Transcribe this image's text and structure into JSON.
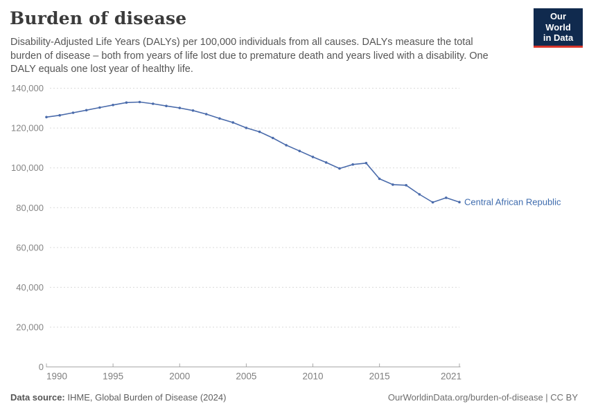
{
  "header": {
    "title": "Burden of disease",
    "subtitle": "Disability-Adjusted Life Years (DALYs) per 100,000 individuals from all causes. DALYs measure the total burden of disease – both from years of life lost due to premature death and years lived with a disability. One DALY equals one lost year of healthy life.",
    "logo": {
      "line1": "Our World",
      "line2": "in Data",
      "bg_color": "#102a4e",
      "accent_color": "#d8352a"
    }
  },
  "chart_data": {
    "type": "line",
    "title": "Burden of disease",
    "xlabel": "",
    "ylabel": "DALYs per 100,000 individuals",
    "x": [
      1990,
      1991,
      1992,
      1993,
      1994,
      1995,
      1996,
      1997,
      1998,
      1999,
      2000,
      2001,
      2002,
      2003,
      2004,
      2005,
      2006,
      2007,
      2008,
      2009,
      2010,
      2011,
      2012,
      2013,
      2014,
      2015,
      2016,
      2017,
      2018,
      2019,
      2020,
      2021
    ],
    "series": [
      {
        "name": "Central African Republic",
        "color": "#4a6bab",
        "values": [
          125500,
          126400,
          127700,
          129000,
          130300,
          131600,
          132800,
          133100,
          132200,
          131100,
          130100,
          128800,
          127000,
          124800,
          122800,
          120100,
          118100,
          115000,
          111400,
          108500,
          105500,
          102700,
          99700,
          101700,
          102400,
          94500,
          91600,
          91300,
          86700,
          82700,
          85000,
          82800
        ]
      }
    ],
    "ylim": [
      0,
      140000
    ],
    "yticks": [
      {
        "value": 0,
        "label": "0"
      },
      {
        "value": 20000,
        "label": "20,000"
      },
      {
        "value": 40000,
        "label": "40,000"
      },
      {
        "value": 60000,
        "label": "60,000"
      },
      {
        "value": 80000,
        "label": "80,000"
      },
      {
        "value": 100000,
        "label": "100,000"
      },
      {
        "value": 120000,
        "label": "120,000"
      },
      {
        "value": 140000,
        "label": "140,000"
      }
    ],
    "xticks": [
      {
        "value": 1990,
        "label": "1990"
      },
      {
        "value": 1995,
        "label": "1995"
      },
      {
        "value": 2000,
        "label": "2000"
      },
      {
        "value": 2005,
        "label": "2005"
      },
      {
        "value": 2010,
        "label": "2010"
      },
      {
        "value": 2015,
        "label": "2015"
      },
      {
        "value": 2021,
        "label": "2021"
      }
    ],
    "grid": "horizontal-dashed",
    "legend_position": "end-of-line-label",
    "entity_label": "Central African Republic"
  },
  "footer": {
    "source_label": "Data source:",
    "source_text": " IHME, Global Burden of Disease (2024)",
    "link_text": "OurWorldinData.org/burden-of-disease | CC BY"
  },
  "colors": {
    "line": "#4a6bab",
    "entity_label": "#3f6cae",
    "gridline": "#dadada",
    "axis": "#a8a8a8",
    "title": "#3b3b3b",
    "subtitle": "#555555"
  }
}
